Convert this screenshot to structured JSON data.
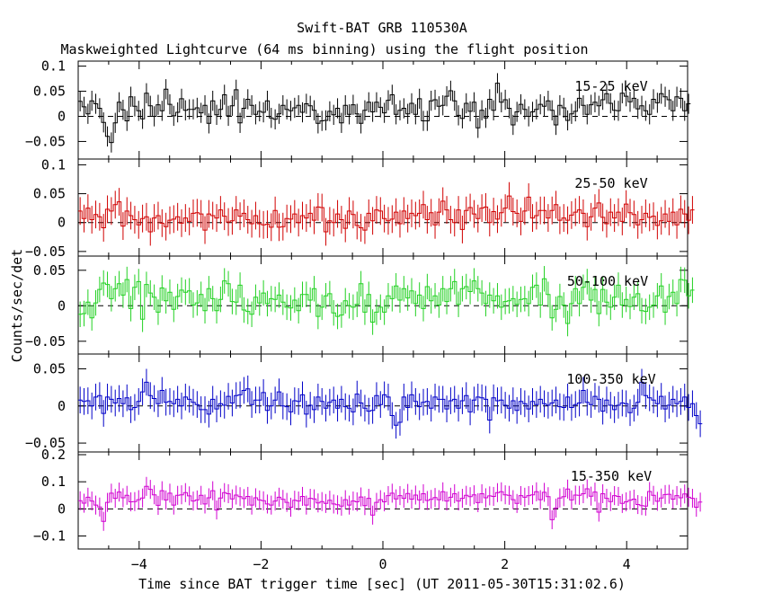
{
  "title": "Swift-BAT GRB 110530A",
  "subtitle": "Maskweighted Lightcurve (64 ms binning) using the flight position",
  "ylabel": "Counts/sec/det",
  "xlabel": "Time since BAT trigger time [sec] (UT 2011-05-30T15:31:02.6)",
  "chart_data": [
    {
      "type": "line",
      "name": "15-25 keV",
      "color": "#000000",
      "xlim": [
        -5,
        5
      ],
      "ylim": [
        -0.085,
        0.11
      ],
      "yticks": [
        -0.05,
        0,
        0.05,
        0.1
      ],
      "ytick_labels": [
        "−0.05",
        "0",
        "0.05",
        "0.1"
      ],
      "x_start": -5.0,
      "bin_width": 0.064,
      "values": [
        0.03,
        0.019,
        0.005,
        0.031,
        0.025,
        0.016,
        -0.012,
        -0.04,
        -0.052,
        -0.013,
        0.028,
        0.013,
        -0.009,
        0.039,
        0.02,
        0.011,
        -0.005,
        0.046,
        0.021,
        0.0,
        0.023,
        0.011,
        0.054,
        0.024,
        0.001,
        0.008,
        0.035,
        0.012,
        0.014,
        0.014,
        0.017,
        0.007,
        0.022,
        -0.014,
        0.031,
        0.003,
        0.014,
        0.043,
        0.001,
        0.021,
        0.053,
        -0.013,
        0.016,
        0.034,
        0.022,
        0.004,
        0.01,
        0.008,
        0.031,
        -0.003,
        -0.006,
        0.005,
        0.022,
        0.014,
        0.011,
        0.017,
        0.022,
        0.008,
        0.025,
        0.021,
        0.012,
        -0.014,
        -0.009,
        -0.008,
        0.01,
        0.003,
        0.016,
        -0.013,
        0.022,
        0.004,
        0.023,
        0.005,
        -0.014,
        0.012,
        0.028,
        0.009,
        0.028,
        0.018,
        0.007,
        0.032,
        0.043,
        0.004,
        0.012,
        0.016,
        0.005,
        0.026,
        0.004,
        0.035,
        -0.009,
        -0.009,
        0.031,
        0.033,
        0.02,
        0.022,
        0.04,
        0.051,
        0.031,
        0.002,
        -0.004,
        0.026,
        0.01,
        0.028,
        -0.023,
        0.012,
        -0.003,
        0.034,
        0.012,
        0.066,
        0.028,
        0.033,
        0.016,
        -0.017,
        0.009,
        0.024,
        0.014,
        0.0,
        0.009,
        0.014,
        0.024,
        0.02,
        0.031,
        0.012,
        -0.017,
        0.022,
        0.017,
        -0.008,
        0.005,
        0.01,
        0.036,
        0.022,
        0.004,
        0.023,
        0.028,
        0.021,
        0.033,
        0.045,
        0.026,
        0.012,
        0.011,
        0.046,
        0.04,
        0.029,
        0.036,
        0.015,
        0.021,
        0.011,
        0.004,
        0.034,
        0.027,
        0.045,
        0.039,
        0.033,
        0.011,
        0.039,
        0.036,
        0.011,
        0.025
      ],
      "errors": 0.02
    },
    {
      "type": "line",
      "name": "25-50 keV",
      "color": "#d10000",
      "xlim": [
        -5,
        5
      ],
      "ylim": [
        -0.058,
        0.11
      ],
      "yticks": [
        -0.05,
        0,
        0.05,
        0.1
      ],
      "ytick_labels": [
        "−0.05",
        "0",
        "0.05",
        "0.1"
      ],
      "x_start": -5.0,
      "bin_width": 0.064,
      "values": [
        0.02,
        0.007,
        0.025,
        0.005,
        0.014,
        0.01,
        -0.009,
        0.023,
        0.02,
        0.031,
        0.036,
        -0.006,
        0.02,
        0.012,
        0.005,
        -0.004,
        0.007,
        0.01,
        -0.016,
        0.008,
        0.012,
        -0.001,
        -0.007,
        0.004,
        0.006,
        0.01,
        -0.001,
        0.008,
        0.002,
        0.016,
        0.017,
        0.015,
        -0.013,
        0.015,
        0.012,
        0.008,
        0.022,
        0.011,
        0.001,
        0.003,
        0.022,
        0.011,
        0.016,
        0.005,
        -0.002,
        0.012,
        -0.002,
        -0.004,
        -0.003,
        -0.008,
        0.021,
        -0.008,
        -0.007,
        0.007,
        0.006,
        0.015,
        0.0,
        0.012,
        0.008,
        0.016,
        0.004,
        0.027,
        0.026,
        -0.016,
        0.003,
        0.0,
        0.015,
        0.005,
        -0.01,
        0.02,
        0.014,
        -0.005,
        -0.009,
        -0.013,
        0.016,
        0.003,
        0.022,
        0.02,
        0.007,
        0.003,
        0.006,
        0.018,
        -0.002,
        0.02,
        0.007,
        0.016,
        0.012,
        0.016,
        0.031,
        0.005,
        0.017,
        -0.004,
        0.018,
        0.037,
        0.022,
        0.005,
        0.0,
        0.022,
        -0.012,
        0.021,
        0.026,
        0.015,
        0.007,
        0.025,
        0.027,
        0.0,
        0.019,
        0.006,
        0.017,
        0.025,
        0.046,
        0.019,
        0.016,
        0.002,
        0.02,
        0.044,
        0.008,
        0.012,
        0.021,
        0.021,
        0.008,
        0.021,
        0.031,
        0.004,
        0.008,
        0.004,
        0.013,
        0.018,
        0.022,
        0.016,
        -0.007,
        0.01,
        0.025,
        0.034,
        0.009,
        -0.002,
        0.018,
        0.008,
        0.018,
        0.002,
        0.032,
        0.017,
        0.014,
        -0.004,
        0.005,
        0.016,
        0.009,
        0.011,
        -0.005,
        0.003,
        0.015,
        0.002,
        0.018,
        -0.004,
        0.023,
        0.015,
        0.004,
        0.022
      ],
      "errors": 0.024
    },
    {
      "type": "line",
      "name": "50-100 keV",
      "color": "#22d122",
      "xlim": [
        -5,
        5
      ],
      "ylim": [
        -0.068,
        0.07
      ],
      "yticks": [
        -0.05,
        0,
        0.05
      ],
      "ytick_labels": [
        "−0.05",
        "0",
        "0.05"
      ],
      "x_start": -5.0,
      "bin_width": 0.064,
      "values": [
        -0.012,
        -0.011,
        0.005,
        -0.017,
        0.004,
        0.023,
        0.032,
        0.03,
        0.01,
        0.024,
        0.031,
        0.015,
        0.037,
        -0.004,
        0.026,
        0.034,
        -0.019,
        0.03,
        0.018,
        0.012,
        -0.009,
        0.025,
        0.007,
        0.019,
        -0.005,
        0.013,
        0.022,
        0.019,
        0.021,
        0.001,
        0.004,
        0.016,
        -0.007,
        0.024,
        0.01,
        -0.007,
        0.009,
        0.035,
        0.031,
        0.006,
        0.005,
        0.029,
        -0.006,
        -0.008,
        -0.012,
        0.012,
        0.004,
        0.018,
        0.003,
        0.01,
        0.009,
        0.015,
        0.005,
        -0.002,
        -0.003,
        0.008,
        -0.007,
        0.016,
        0.016,
        0.008,
        0.024,
        -0.015,
        -0.002,
        0.014,
        0.017,
        -0.01,
        -0.015,
        -0.013,
        0.007,
        0.0,
        -0.002,
        0.002,
        0.031,
        -0.009,
        0.016,
        -0.023,
        -0.009,
        -0.002,
        -0.009,
        0.014,
        0.01,
        0.028,
        0.008,
        0.024,
        0.011,
        0.021,
        0.003,
        0.015,
        -0.004,
        0.027,
        0.007,
        0.014,
        0.001,
        0.024,
        0.006,
        0.024,
        0.034,
        0.002,
        0.024,
        0.027,
        0.02,
        0.035,
        0.024,
        0.018,
        0.003,
        0.015,
        0.007,
        0.014,
        -0.002,
        0.006,
        0.007,
        0.01,
        0.002,
        0.009,
        0.01,
        0.003,
        0.026,
        0.029,
        0.001,
        0.038,
        0.016,
        -0.017,
        -0.005,
        0.013,
        0.001,
        -0.025,
        0.003,
        0.024,
        0.003,
        0.026,
        0.034,
        0.008,
        0.023,
        -0.011,
        0.023,
        0.005,
        -0.002,
        0.012,
        0.029,
        0.001,
        0.009,
        -0.001,
        0.012,
        0.017,
        -0.007,
        -0.008,
        -0.002,
        0.001,
        0.014,
        0.028,
        -0.009,
        0.013,
        0.019,
        0.003,
        0.037,
        0.036,
        0.014,
        0.022
      ],
      "errors": 0.018
    },
    {
      "type": "line",
      "name": "100-350 keV",
      "color": "#0000c8",
      "xlim": [
        -5,
        5
      ],
      "ylim": [
        -0.062,
        0.07
      ],
      "yticks": [
        -0.05,
        0,
        0.05
      ],
      "ytick_labels": [
        "−0.05",
        "0",
        "0.05"
      ],
      "x_start": -5.0,
      "bin_width": 0.064,
      "values": [
        0.008,
        0.006,
        0.007,
        0.0,
        0.012,
        0.014,
        -0.01,
        0.012,
        0.009,
        0.004,
        0.01,
        0.003,
        0.011,
        -0.005,
        -0.002,
        0.006,
        0.019,
        0.032,
        0.014,
        0.01,
        0.003,
        0.021,
        0.005,
        0.006,
        0.003,
        0.009,
        0.0,
        0.012,
        0.009,
        0.005,
        0.002,
        -0.005,
        -0.005,
        -0.011,
        0.009,
        -0.004,
        0.003,
        0.001,
        0.013,
        0.004,
        0.014,
        0.015,
        0.021,
        0.023,
        0.002,
        0.008,
        0.008,
        0.018,
        -0.006,
        0.0,
        0.008,
        0.019,
        0.0,
        -0.001,
        -0.008,
        0.007,
        0.006,
        0.015,
        -0.011,
        0.001,
        -0.005,
        0.012,
        0.006,
        -0.003,
        0.005,
        0.008,
        -0.003,
        0.009,
        -0.001,
        -0.003,
        -0.008,
        0.016,
        0.004,
        -0.003,
        -0.007,
        -0.006,
        0.014,
        0.002,
        0.015,
        0.012,
        -0.013,
        -0.026,
        -0.022,
        0.012,
        -0.002,
        0.015,
        0.006,
        -0.001,
        0.005,
        0.006,
        -0.003,
        0.012,
        0.009,
        0.009,
        -0.004,
        0.007,
        0.009,
        -0.003,
        0.007,
        0.014,
        -0.008,
        0.008,
        0.012,
        0.011,
        0.009,
        -0.019,
        0.011,
        0.007,
        0.008,
        0.001,
        -0.003,
        0.007,
        -0.006,
        0.006,
        0.003,
        -0.004,
        0.006,
        0.002,
        0.009,
        0.003,
        0.001,
        0.004,
        0.008,
        -0.001,
        -0.002,
        0.012,
        -0.002,
        0.002,
        0.004,
        0.021,
        0.005,
        0.002,
        0.013,
        0.009,
        -0.007,
        0.008,
        0.001,
        -0.005,
        0.001,
        0.004,
        0.003,
        -0.009,
        -0.003,
        0.005,
        0.032,
        0.014,
        0.011,
        0.008,
        0.003,
        0.013,
        -0.004,
        0.001,
        0.009,
        0.003,
        0.006,
        0.012,
        -0.002,
        0.003,
        -0.013,
        -0.024
      ],
      "errors": 0.018
    },
    {
      "type": "line",
      "name": "15-350 keV",
      "color": "#d100d1",
      "xlim": [
        -5,
        5
      ],
      "ylim": [
        -0.148,
        0.21
      ],
      "yticks": [
        -0.1,
        0,
        0.1,
        0.2
      ],
      "ytick_labels": [
        "−0.1",
        "0",
        "0.1",
        "0.2"
      ],
      "x_start": -5.0,
      "bin_width": 0.064,
      "values": [
        0.03,
        0.021,
        0.043,
        0.029,
        0.014,
        0.007,
        -0.046,
        0.024,
        0.058,
        0.039,
        0.062,
        0.041,
        0.05,
        0.026,
        0.027,
        0.034,
        0.04,
        0.083,
        0.072,
        0.052,
        0.013,
        0.067,
        0.033,
        0.058,
        0.014,
        0.05,
        0.052,
        0.06,
        0.048,
        0.029,
        0.033,
        0.05,
        0.018,
        0.041,
        0.067,
        -0.004,
        0.04,
        0.06,
        0.056,
        0.037,
        0.051,
        0.045,
        0.038,
        0.046,
        0.014,
        0.041,
        0.033,
        0.03,
        0.018,
        0.014,
        0.029,
        0.043,
        0.035,
        0.024,
        0.006,
        0.032,
        0.029,
        0.046,
        0.014,
        0.039,
        0.037,
        0.022,
        0.027,
        0.02,
        0.032,
        0.018,
        0.015,
        0.01,
        0.034,
        0.014,
        0.029,
        0.026,
        0.044,
        0.012,
        0.039,
        -0.023,
        0.024,
        0.034,
        0.026,
        0.049,
        0.058,
        0.037,
        0.049,
        0.039,
        0.057,
        0.036,
        0.051,
        0.033,
        0.056,
        0.031,
        0.035,
        0.042,
        0.034,
        0.063,
        0.029,
        0.043,
        0.056,
        0.029,
        0.039,
        0.05,
        0.045,
        0.052,
        0.023,
        0.056,
        0.041,
        0.048,
        0.046,
        0.06,
        0.063,
        0.052,
        0.05,
        0.034,
        0.02,
        0.049,
        0.043,
        0.049,
        0.052,
        0.063,
        0.034,
        0.061,
        0.045,
        -0.04,
        0.003,
        0.04,
        0.045,
        0.073,
        0.033,
        0.051,
        0.05,
        0.056,
        0.074,
        0.047,
        0.062,
        -0.012,
        0.056,
        0.039,
        0.027,
        0.049,
        0.046,
        0.02,
        0.026,
        0.032,
        0.036,
        0.016,
        0.012,
        0.01,
        0.064,
        0.05,
        0.028,
        0.04,
        0.053,
        0.054,
        0.036,
        0.049,
        0.041,
        0.055,
        0.043,
        0.039,
        0.006,
        0.025
      ],
      "errors": 0.035
    }
  ],
  "xticks": [
    -4,
    -2,
    0,
    2,
    4
  ],
  "xtick_labels": [
    "−4",
    "−2",
    "0",
    "2",
    "4"
  ]
}
